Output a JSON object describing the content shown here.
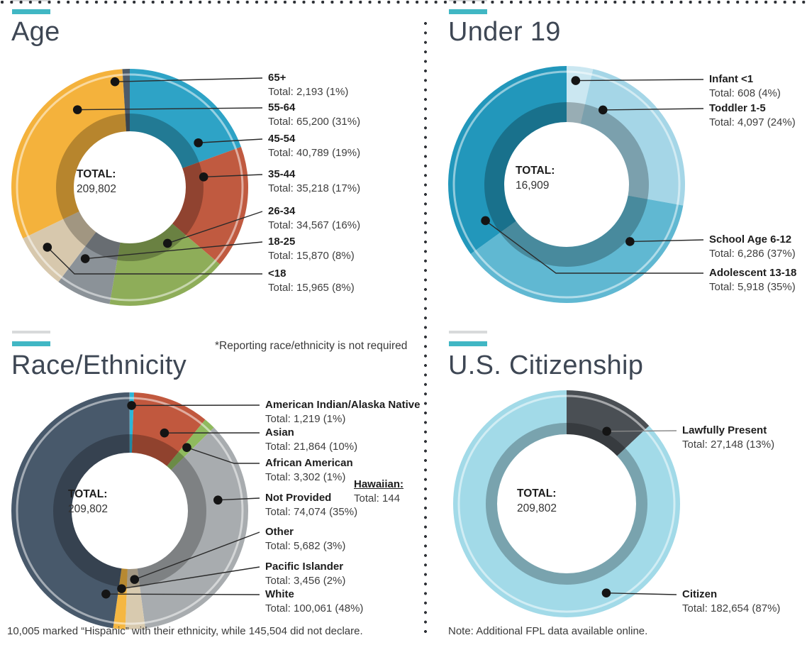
{
  "colors": {
    "accent_teal": "#41b7c4",
    "leader_line": "#2a2a2a",
    "leader_dot": "#141414",
    "title_color": "#3e4754",
    "inner_shadow": "rgba(0,0,0,0.25)",
    "outer_white_arc": "rgba(255,255,255,0.5)"
  },
  "notes": {
    "race_reporting": "*Reporting race/ethnicity is not required",
    "hispanic": "10,005 marked “Hispanic” with their ethnicity, while 145,504 did not declare.",
    "fpl": "Note: Additional FPL data available online."
  },
  "chart_data": [
    {
      "type": "donut",
      "title": "Age",
      "total_label": "TOTAL:",
      "total_value": "209,802",
      "segments": [
        {
          "label": "65+",
          "value": 2193,
          "pct": 1,
          "value_text": "Total: 2,193 (1%)",
          "color": "#4d5b69"
        },
        {
          "label": "55-64",
          "value": 65200,
          "pct": 31,
          "value_text": "Total: 65,200 (31%)",
          "color": "#f4b23c"
        },
        {
          "label": "45-54",
          "value": 40789,
          "pct": 19,
          "value_text": "Total: 40,789 (19%)",
          "color": "#2ea3c6"
        },
        {
          "label": "35-44",
          "value": 35218,
          "pct": 17,
          "value_text": "Total: 35,218 (17%)",
          "color": "#c05a40"
        },
        {
          "label": "26-34",
          "value": 34567,
          "pct": 16,
          "value_text": "Total: 34,567 (16%)",
          "color": "#8ead59"
        },
        {
          "label": "18-25",
          "value": 15870,
          "pct": 8,
          "value_text": "Total: 15,870 (8%)",
          "color": "#8b9298"
        },
        {
          "label": "<18",
          "value": 15965,
          "pct": 8,
          "value_text": "Total: 15,965 (8%)",
          "color": "#d7c8ad"
        }
      ]
    },
    {
      "type": "donut",
      "title": "Under 19",
      "total_label": "TOTAL:",
      "total_value": "16,909",
      "segments": [
        {
          "label": "Infant <1",
          "value": 608,
          "pct": 4,
          "value_text": "Total: 608 (4%)",
          "color": "#cbe7f1"
        },
        {
          "label": "Toddler 1-5",
          "value": 4097,
          "pct": 24,
          "value_text": "Total: 4,097 (24%)",
          "color": "#a5d6e7"
        },
        {
          "label": "School Age 6-12",
          "value": 6286,
          "pct": 37,
          "value_text": "Total: 6,286 (37%)",
          "color": "#60b8d2"
        },
        {
          "label": "Adolescent 13-18",
          "value": 5918,
          "pct": 35,
          "value_text": "Total: 5,918 (35%)",
          "color": "#2297bb"
        }
      ]
    },
    {
      "type": "donut",
      "title": "Race/Ethnicity",
      "total_label": "TOTAL:",
      "total_value": "209,802",
      "hawaiian": {
        "label": "Hawaiian:",
        "value": 144,
        "value_text": "Total: 144"
      },
      "segments": [
        {
          "label": "American Indian/Alaska Native",
          "value": 1219,
          "pct": 1,
          "value_text": "Total: 1,219 (1%)",
          "color": "#2bb6d8"
        },
        {
          "label": "Asian",
          "value": 21864,
          "pct": 10,
          "value_text": "Total: 21,864 (10%)",
          "color": "#c1583e"
        },
        {
          "label": "African American",
          "value": 3302,
          "pct": 1,
          "value_text": "Total: 3,302 (1%)",
          "color": "#8fba5e"
        },
        {
          "label": "Not Provided",
          "value": 74074,
          "pct": 35,
          "value_text": "Total: 74,074 (35%)",
          "color": "#a8acaf"
        },
        {
          "label": "Other",
          "value": 5682,
          "pct": 3,
          "value_text": "Total: 5,682 (3%)",
          "color": "#d8caaf"
        },
        {
          "label": "Pacific Islander",
          "value": 3456,
          "pct": 2,
          "value_text": "Total: 3,456 (2%)",
          "color": "#f5b742"
        },
        {
          "label": "White",
          "value": 100061,
          "pct": 48,
          "value_text": "Total: 100,061 (48%)",
          "color": "#48596b"
        }
      ]
    },
    {
      "type": "donut",
      "title": "U.S. Citizenship",
      "total_label": "TOTAL:",
      "total_value": "209,802",
      "segments": [
        {
          "label": "Lawfully Present",
          "value": 27148,
          "pct": 13,
          "value_text": "Total: 27,148 (13%)",
          "color": "#4a4f54"
        },
        {
          "label": "Citizen",
          "value": 182654,
          "pct": 87,
          "value_text": "Total: 182,654 (87%)",
          "color": "#a2dae8"
        }
      ]
    }
  ]
}
